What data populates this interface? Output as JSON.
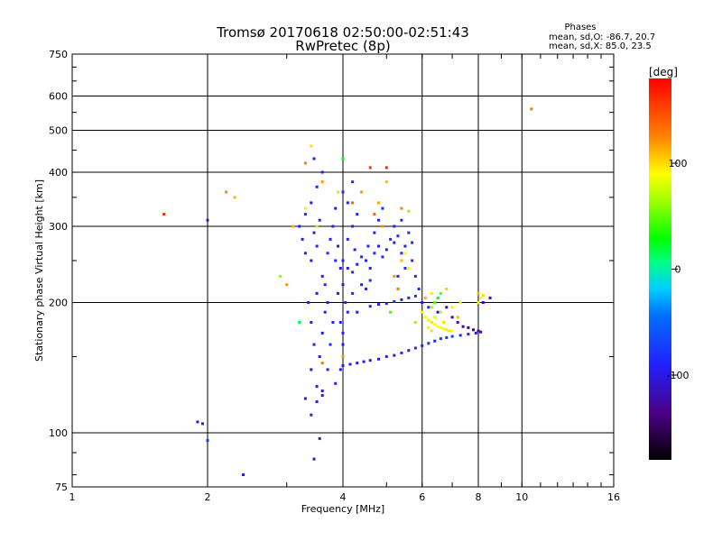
{
  "chart_data": {
    "type": "scatter",
    "title": "Tromsø 20170618 02:50:00-02:51:43",
    "subtitle": "RwPretec (8p)",
    "xlabel": "Frequency [MHz]",
    "ylabel": "Stationary phase Virtual Height [km]",
    "x_scale": "log2",
    "y_scale": "log",
    "xlim": [
      1,
      16
    ],
    "ylim": [
      75,
      750
    ],
    "x_ticks": [
      1,
      2,
      4,
      6,
      8,
      10,
      16
    ],
    "x_tick_labels": [
      "1",
      "2",
      "4",
      "6",
      "8",
      "10",
      "16"
    ],
    "y_ticks": [
      75,
      100,
      200,
      300,
      400,
      500,
      600,
      750
    ],
    "y_tick_labels": [
      "75",
      "100",
      "200",
      "300",
      "400",
      "500",
      "600",
      "750"
    ],
    "grid_x": [
      2,
      4,
      6,
      8,
      10
    ],
    "grid_y": [
      100,
      200,
      300,
      400,
      500,
      600
    ],
    "phase_info": {
      "title": "Phases",
      "line_o": "mean, sd,O: -86.7, 20.7",
      "line_x": "mean, sd,X: 85.0, 23.5"
    },
    "colorbar": {
      "label": "[deg]",
      "range": [
        -180,
        180
      ],
      "ticks": [
        100,
        0,
        -100
      ],
      "tick_labels": [
        "100",
        "0",
        "-100"
      ]
    },
    "series": [
      {
        "name": "o-trace",
        "points": [
          [
            4.0,
            143,
            -95
          ],
          [
            4.15,
            144,
            -100
          ],
          [
            4.3,
            145,
            -92
          ],
          [
            4.45,
            146,
            -98
          ],
          [
            4.6,
            147,
            -90
          ],
          [
            4.8,
            148,
            -96
          ],
          [
            5.0,
            150,
            -88
          ],
          [
            5.2,
            151,
            -92
          ],
          [
            5.4,
            153,
            -85
          ],
          [
            5.6,
            155,
            -90
          ],
          [
            5.8,
            157,
            -82
          ],
          [
            6.0,
            159,
            -88
          ],
          [
            6.2,
            161,
            -80
          ],
          [
            6.4,
            163,
            -84
          ],
          [
            6.6,
            165,
            -78
          ],
          [
            6.8,
            166,
            -82
          ],
          [
            7.0,
            167,
            -75
          ],
          [
            7.3,
            168,
            -85
          ],
          [
            7.6,
            169,
            -95
          ],
          [
            7.9,
            170,
            -110
          ],
          [
            8.1,
            171,
            -125
          ],
          [
            4.6,
            196,
            -92
          ],
          [
            4.8,
            198,
            -88
          ],
          [
            5.0,
            199,
            -95
          ],
          [
            5.2,
            201,
            -84
          ],
          [
            5.4,
            203,
            -90
          ],
          [
            5.6,
            205,
            -86
          ],
          [
            5.8,
            207,
            -82
          ],
          [
            3.5,
            128,
            -100
          ],
          [
            3.55,
            150,
            -95
          ],
          [
            3.6,
            170,
            -102
          ],
          [
            3.65,
            190,
            -92
          ],
          [
            3.5,
            210,
            -98
          ],
          [
            3.6,
            230,
            -90
          ],
          [
            3.4,
            250,
            -96
          ],
          [
            3.5,
            270,
            -88
          ],
          [
            3.45,
            290,
            -100
          ],
          [
            3.55,
            310,
            -92
          ],
          [
            3.4,
            340,
            -96
          ],
          [
            3.5,
            370,
            -90
          ],
          [
            3.6,
            400,
            -98
          ],
          [
            3.45,
            430,
            -94
          ],
          [
            3.3,
            260,
            -90
          ],
          [
            3.25,
            280,
            -100
          ],
          [
            3.7,
            260,
            -85
          ],
          [
            3.75,
            280,
            -95
          ],
          [
            3.8,
            300,
            -88
          ],
          [
            3.85,
            330,
            -96
          ],
          [
            3.9,
            360,
            -92
          ],
          [
            3.2,
            300,
            -95
          ],
          [
            3.3,
            320,
            -88
          ],
          [
            3.35,
            200,
            -92
          ],
          [
            3.4,
            180,
            -96
          ],
          [
            3.45,
            160,
            -90
          ],
          [
            3.4,
            140,
            -100
          ],
          [
            3.6,
            125,
            -94
          ],
          [
            3.7,
            140,
            -90
          ],
          [
            3.75,
            160,
            -86
          ],
          [
            3.8,
            180,
            -96
          ],
          [
            3.7,
            200,
            -92
          ],
          [
            3.65,
            220,
            -88
          ],
          [
            3.9,
            210,
            -94
          ],
          [
            3.95,
            240,
            -90
          ],
          [
            4.0,
            250,
            -88
          ],
          [
            4.1,
            240,
            -92
          ],
          [
            4.2,
            235,
            -86
          ],
          [
            4.3,
            245,
            -90
          ],
          [
            4.4,
            255,
            -84
          ],
          [
            4.5,
            250,
            -88
          ],
          [
            4.6,
            240,
            -92
          ],
          [
            4.7,
            260,
            -86
          ],
          [
            4.8,
            270,
            -90
          ],
          [
            4.9,
            255,
            -82
          ],
          [
            5.0,
            265,
            -88
          ],
          [
            5.1,
            280,
            -84
          ],
          [
            5.2,
            275,
            -90
          ],
          [
            5.3,
            285,
            -86
          ],
          [
            5.4,
            260,
            -80
          ],
          [
            5.5,
            270,
            -92
          ],
          [
            5.6,
            290,
            -84
          ],
          [
            5.7,
            275,
            -88
          ],
          [
            4.2,
            300,
            -90
          ],
          [
            4.3,
            320,
            -86
          ],
          [
            4.1,
            340,
            -92
          ],
          [
            4.0,
            360,
            -88
          ],
          [
            4.2,
            380,
            -84
          ],
          [
            4.1,
            280,
            -90
          ],
          [
            4.0,
            220,
            -96
          ],
          [
            4.05,
            200,
            -92
          ],
          [
            3.95,
            180,
            -88
          ],
          [
            4.0,
            170,
            -94
          ],
          [
            4.1,
            190,
            -90
          ],
          [
            4.2,
            210,
            -86
          ],
          [
            4.4,
            220,
            -92
          ],
          [
            4.5,
            215,
            -88
          ],
          [
            4.6,
            225,
            -84
          ],
          [
            4.3,
            190,
            -90
          ],
          [
            4.0,
            160,
            -96
          ],
          [
            3.95,
            140,
            -92
          ],
          [
            3.85,
            130,
            -100
          ],
          [
            3.3,
            120,
            -104
          ],
          [
            3.4,
            110,
            -98
          ],
          [
            3.5,
            118,
            -95
          ],
          [
            3.6,
            122,
            -100
          ],
          [
            5.2,
            300,
            -88
          ],
          [
            5.4,
            310,
            -84
          ],
          [
            5.5,
            240,
            -86
          ],
          [
            5.7,
            250,
            -80
          ],
          [
            5.3,
            230,
            -90
          ],
          [
            4.8,
            310,
            -92
          ],
          [
            4.9,
            330,
            -86
          ],
          [
            4.7,
            290,
            -90
          ],
          [
            3.9,
            270,
            -94
          ],
          [
            3.85,
            250,
            -88
          ],
          [
            4.25,
            265,
            -90
          ],
          [
            4.55,
            270,
            -86
          ],
          [
            5.8,
            230,
            -85
          ],
          [
            5.9,
            215,
            -88
          ],
          [
            6.0,
            200,
            -92
          ],
          [
            6.2,
            195,
            -95
          ],
          [
            6.5,
            190,
            -110
          ],
          [
            6.8,
            195,
            -120
          ],
          [
            7.0,
            185,
            -130
          ],
          [
            7.2,
            180,
            -115
          ],
          [
            7.4,
            176,
            -125
          ],
          [
            7.6,
            175,
            -140
          ],
          [
            7.8,
            173,
            -135
          ],
          [
            8.0,
            172,
            -130
          ],
          [
            8.5,
            205,
            -120
          ],
          [
            8.2,
            200,
            -125
          ],
          [
            3.55,
            97,
            -100
          ],
          [
            3.45,
            87,
            -110
          ],
          [
            2.4,
            80,
            -95
          ],
          [
            1.95,
            105,
            -92
          ],
          [
            1.9,
            106,
            -88
          ],
          [
            2.0,
            96,
            -70
          ],
          [
            2.0,
            310,
            -100
          ]
        ]
      },
      {
        "name": "x-trace",
        "points": [
          [
            6.0,
            190,
            85
          ],
          [
            6.1,
            185,
            90
          ],
          [
            6.2,
            182,
            95
          ],
          [
            6.3,
            180,
            100
          ],
          [
            6.4,
            178,
            90
          ],
          [
            6.5,
            176,
            88
          ],
          [
            6.6,
            175,
            92
          ],
          [
            6.7,
            174,
            85
          ],
          [
            6.8,
            173,
            95
          ],
          [
            6.9,
            172,
            100
          ],
          [
            7.0,
            172,
            90
          ],
          [
            6.3,
            195,
            60
          ],
          [
            6.4,
            200,
            45
          ],
          [
            6.5,
            205,
            30
          ],
          [
            6.6,
            210,
            50
          ],
          [
            6.3,
            172,
            100
          ],
          [
            6.2,
            175,
            95
          ],
          [
            6.4,
            185,
            80
          ],
          [
            6.6,
            190,
            70
          ],
          [
            8.0,
            210,
            110
          ],
          [
            8.1,
            205,
            90
          ],
          [
            8.2,
            208,
            100
          ],
          [
            8.0,
            200,
            95
          ],
          [
            5.2,
            230,
            120
          ],
          [
            5.4,
            250,
            110
          ],
          [
            5.5,
            260,
            90
          ],
          [
            5.6,
            240,
            80
          ],
          [
            5.3,
            215,
            130
          ],
          [
            4.7,
            320,
            140
          ],
          [
            4.9,
            300,
            120
          ],
          [
            5.0,
            380,
            110
          ],
          [
            4.6,
            410,
            160
          ],
          [
            3.3,
            420,
            130
          ],
          [
            3.6,
            380,
            120
          ],
          [
            3.3,
            330,
            95
          ],
          [
            3.5,
            300,
            100
          ],
          [
            3.1,
            300,
            110
          ],
          [
            3.0,
            220,
            120
          ],
          [
            2.9,
            230,
            60
          ],
          [
            2.3,
            350,
            110
          ],
          [
            1.6,
            320,
            165
          ],
          [
            10.5,
            560,
            130
          ],
          [
            4.2,
            340,
            140
          ],
          [
            4.4,
            360,
            120
          ],
          [
            4.8,
            340,
            115
          ],
          [
            5.8,
            180,
            105
          ],
          [
            6.1,
            205,
            110
          ],
          [
            6.3,
            210,
            95
          ],
          [
            6.7,
            180,
            100
          ],
          [
            7.2,
            185,
            110
          ],
          [
            7.0,
            195,
            95
          ],
          [
            5.6,
            325,
            60
          ],
          [
            3.4,
            460,
            100
          ],
          [
            3.6,
            145,
            130
          ],
          [
            4.0,
            150,
            120
          ],
          [
            5.0,
            410,
            165
          ],
          [
            2.2,
            360,
            125
          ],
          [
            3.9,
            360,
            70
          ],
          [
            7.3,
            200,
            80
          ],
          [
            6.8,
            215,
            105
          ],
          [
            5.1,
            190,
            40
          ],
          [
            4.0,
            430,
            30
          ],
          [
            3.2,
            180,
            20
          ],
          [
            5.4,
            330,
            125
          ]
        ]
      }
    ]
  }
}
